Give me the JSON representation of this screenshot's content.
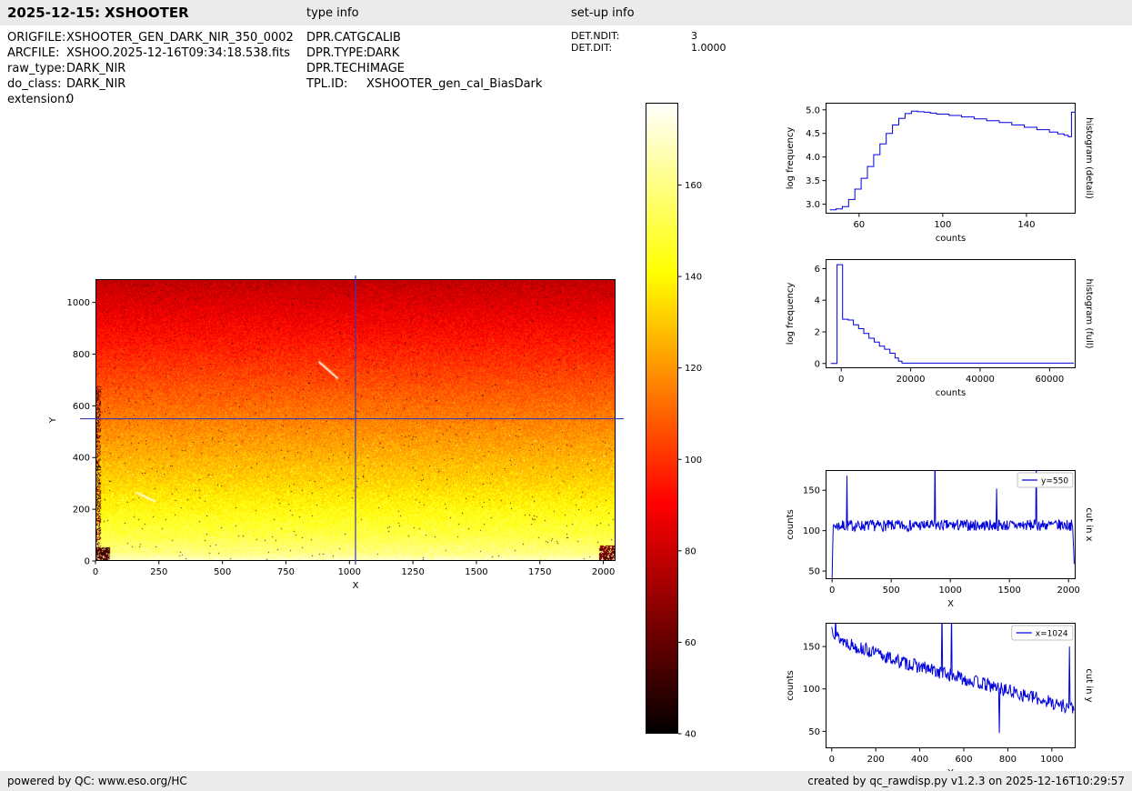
{
  "header": {
    "title": "2025-12-15: XSHOOTER",
    "type_info_label": "type info",
    "setup_info_label": "set-up info"
  },
  "file_info": [
    {
      "label": "ORIGFILE:",
      "value": "XSHOOTER_GEN_DARK_NIR_350_0002"
    },
    {
      "label": "ARCFILE:",
      "value": "XSHOO.2025-12-16T09:34:18.538.fits"
    },
    {
      "label": "raw_type:",
      "value": "DARK_NIR"
    },
    {
      "label": "do_class:",
      "value": "DARK_NIR"
    },
    {
      "label": "extension:",
      "value": "0"
    }
  ],
  "type_info": [
    {
      "label": "DPR.CATG:",
      "value": "CALIB"
    },
    {
      "label": "DPR.TYPE:",
      "value": "DARK"
    },
    {
      "label": "DPR.TECH:",
      "value": "IMAGE"
    },
    {
      "label": "TPL.ID:",
      "value": "XSHOOTER_gen_cal_BiasDark"
    }
  ],
  "setup_info": [
    {
      "label": "DET.NDIT:",
      "value": "3"
    },
    {
      "label": "DET.DIT:",
      "value": "1.0000"
    }
  ],
  "footer": {
    "left": "powered by QC: www.eso.org/HC",
    "right": "created by qc_rawdisp.py v1.2.3 on 2025-12-16T10:29:57"
  },
  "colors": {
    "line": "#0000dd",
    "crosshair": "#3a3aad",
    "bar_bg": "#ebebeb"
  },
  "chart_data": [
    {
      "id": "image_main",
      "type": "heatmap",
      "title": "",
      "xlabel": "X",
      "ylabel": "Y",
      "ylabel_off": -44,
      "xlim": [
        0,
        2048
      ],
      "ylim": [
        0,
        1090
      ],
      "xticks": [
        0,
        250,
        500,
        750,
        1000,
        1250,
        1500,
        1750,
        2000
      ],
      "yticks": [
        0,
        200,
        400,
        600,
        800,
        1000
      ],
      "colormap": "hot",
      "vrange": [
        40,
        178
      ],
      "profile": [
        [
          0,
          172
        ],
        [
          30,
          160
        ],
        [
          100,
          151
        ],
        [
          200,
          142
        ],
        [
          300,
          133
        ],
        [
          400,
          126
        ],
        [
          500,
          119
        ],
        [
          600,
          112
        ],
        [
          700,
          105
        ],
        [
          800,
          98
        ],
        [
          900,
          91
        ],
        [
          1000,
          84
        ],
        [
          1090,
          78
        ]
      ],
      "streaks": [
        [
          160,
          265,
          235,
          230
        ],
        [
          880,
          770,
          955,
          705
        ]
      ],
      "crosshair": {
        "x": 1024,
        "y": 550
      },
      "seed": 42
    },
    {
      "id": "colorbar",
      "type": "colorbar",
      "colormap": "hot",
      "vmin": 40,
      "vmax": 178,
      "ticks": [
        40,
        60,
        80,
        100,
        120,
        140,
        160
      ],
      "tick_labels": [
        "40",
        "60",
        "80",
        "100",
        "120",
        "140",
        "160"
      ]
    },
    {
      "id": "hist_detail",
      "type": "line",
      "step": true,
      "xlabel": "counts",
      "ylabel": "log frequency",
      "right_label": "histogram (detail)",
      "xlim": [
        44,
        163.5
      ],
      "ylim": [
        2.8,
        5.15
      ],
      "xticks": [
        60,
        100,
        140
      ],
      "yticks": [
        3.0,
        3.5,
        4.0,
        4.5,
        5.0
      ],
      "ytick_labels": [
        "3.0",
        "3.5",
        "4.0",
        "4.5",
        "5.0"
      ],
      "x": [
        46,
        49,
        52,
        55,
        58,
        61,
        64,
        67,
        70,
        73,
        76,
        79,
        82,
        85,
        88,
        91,
        94,
        97,
        103,
        109,
        115,
        121,
        127,
        133,
        139,
        145,
        151,
        155,
        158,
        160,
        161.5,
        163.5
      ],
      "y": [
        2.88,
        2.9,
        2.95,
        3.1,
        3.32,
        3.55,
        3.8,
        4.05,
        4.28,
        4.5,
        4.68,
        4.82,
        4.92,
        4.97,
        4.96,
        4.95,
        4.93,
        4.91,
        4.88,
        4.85,
        4.81,
        4.77,
        4.73,
        4.68,
        4.63,
        4.58,
        4.53,
        4.49,
        4.46,
        4.43,
        4.95,
        4.9
      ]
    },
    {
      "id": "hist_full",
      "type": "line",
      "step": true,
      "xlabel": "counts",
      "ylabel": "log frequency",
      "right_label": "histogram (full)",
      "xlim": [
        -4500,
        67500
      ],
      "ylim": [
        -0.3,
        6.6
      ],
      "xticks": [
        0,
        20000,
        40000,
        60000
      ],
      "yticks": [
        0,
        2,
        4,
        6
      ],
      "x": [
        -3000,
        -1200,
        400,
        2000,
        3500,
        5000,
        6500,
        8000,
        9500,
        11000,
        12500,
        14000,
        15500,
        16500,
        17500,
        67000
      ],
      "y": [
        0,
        6.25,
        2.8,
        2.75,
        2.45,
        2.2,
        1.9,
        1.6,
        1.35,
        1.1,
        0.9,
        0.65,
        0.35,
        0.15,
        0.02,
        0.02
      ]
    },
    {
      "id": "cut_x",
      "type": "line",
      "xlabel": "X",
      "ylabel": "counts",
      "right_label": "cut in x",
      "legend": "y=550",
      "xlim": [
        -55,
        2060
      ],
      "ylim": [
        40,
        175
      ],
      "xticks": [
        0,
        500,
        1000,
        1500,
        2000
      ],
      "yticks": [
        50,
        100,
        150
      ],
      "generator": {
        "xrange": [
          0,
          2048
        ],
        "n": 440,
        "noise": 7,
        "seed": 7,
        "profile": [
          [
            0,
            48
          ],
          [
            6,
            95
          ],
          [
            15,
            106
          ],
          [
            2030,
            107
          ],
          [
            2042,
            85
          ],
          [
            2048,
            55
          ]
        ],
        "spikes": [
          [
            125,
            168
          ],
          [
            870,
            200
          ],
          [
            1390,
            152
          ],
          [
            1725,
            200
          ]
        ]
      }
    },
    {
      "id": "cut_y",
      "type": "line",
      "xlabel": "Y",
      "ylabel": "counts",
      "right_label": "cut in y",
      "legend": "x=1024",
      "xlim": [
        -28,
        1108
      ],
      "ylim": [
        30,
        178
      ],
      "xticks": [
        0,
        200,
        400,
        600,
        800,
        1000
      ],
      "yticks": [
        50,
        100,
        150
      ],
      "generator": {
        "xrange": [
          0,
          1100
        ],
        "n": 380,
        "noise": 8,
        "seed": 13,
        "profile": [
          [
            0,
            172
          ],
          [
            30,
            160
          ],
          [
            100,
            151
          ],
          [
            200,
            142
          ],
          [
            300,
            133
          ],
          [
            400,
            126
          ],
          [
            500,
            119
          ],
          [
            600,
            112
          ],
          [
            700,
            105
          ],
          [
            800,
            98
          ],
          [
            900,
            91
          ],
          [
            1000,
            84
          ],
          [
            1100,
            77
          ]
        ],
        "spikes": [
          [
            18,
            186
          ],
          [
            500,
            200
          ],
          [
            545,
            195
          ],
          [
            760,
            48
          ],
          [
            1080,
            150
          ]
        ]
      }
    }
  ]
}
